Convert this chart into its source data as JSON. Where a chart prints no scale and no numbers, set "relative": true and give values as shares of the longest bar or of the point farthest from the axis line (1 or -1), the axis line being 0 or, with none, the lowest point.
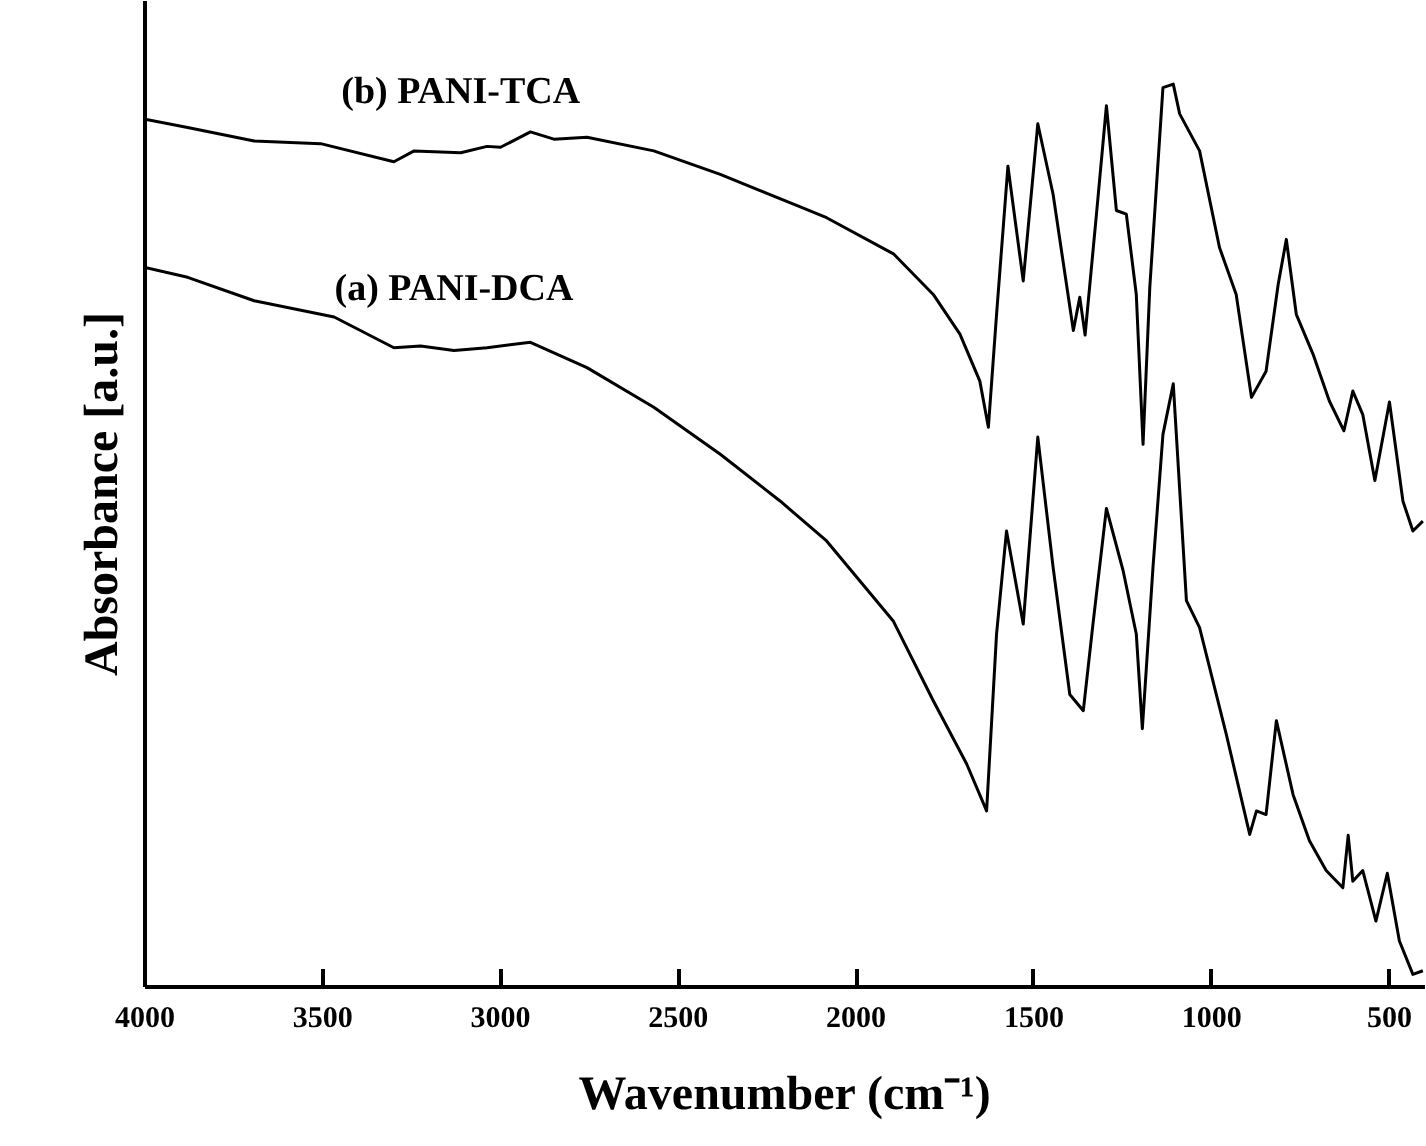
{
  "chart_data": {
    "type": "line",
    "relative": true,
    "xlabel": "Wavenumber (cm⁻¹)",
    "ylabel": "Absorbance [a.u.]",
    "xlim": [
      4000,
      400
    ],
    "xticks": [
      4000,
      3500,
      3000,
      2500,
      2000,
      1500,
      1000,
      500
    ],
    "grid": false,
    "series": [
      {
        "name": "(b) PANI-TCA",
        "color": "#000000",
        "x": [
          4000,
          3880,
          3693,
          3506,
          3300,
          3243,
          3112,
          3038,
          3000,
          2916,
          2850,
          2757,
          2569,
          2382,
          2270,
          2157,
          2083,
          1895,
          1783,
          1708,
          1652,
          1628,
          1605,
          1573,
          1530,
          1489,
          1446,
          1389,
          1371,
          1356,
          1324,
          1296,
          1268,
          1240,
          1212,
          1193,
          1174,
          1137,
          1108,
          1090,
          1034,
          978,
          931,
          888,
          847,
          813,
          790,
          762,
          715,
          669,
          628,
          603,
          575,
          541,
          500,
          462,
          434,
          406
        ],
        "values": [
          0.961,
          0.952,
          0.937,
          0.934,
          0.914,
          0.926,
          0.924,
          0.931,
          0.93,
          0.947,
          0.939,
          0.941,
          0.926,
          0.9,
          0.882,
          0.864,
          0.852,
          0.812,
          0.767,
          0.723,
          0.671,
          0.62,
          0.745,
          0.909,
          0.782,
          0.956,
          0.878,
          0.727,
          0.764,
          0.722,
          0.856,
          0.976,
          0.86,
          0.856,
          0.767,
          0.601,
          0.775,
          0.996,
          1.0,
          0.967,
          0.926,
          0.819,
          0.767,
          0.653,
          0.682,
          0.778,
          0.828,
          0.745,
          0.701,
          0.649,
          0.616,
          0.66,
          0.634,
          0.561,
          0.648,
          0.538,
          0.505,
          0.516
        ]
      },
      {
        "name": "(a) PANI-DCA",
        "color": "#000000",
        "x": [
          4000,
          3880,
          3693,
          3468,
          3300,
          3225,
          3131,
          3038,
          2916,
          2757,
          2569,
          2382,
          2213,
          2083,
          1895,
          1783,
          1689,
          1633,
          1605,
          1577,
          1530,
          1489,
          1446,
          1399,
          1361,
          1333,
          1296,
          1249,
          1212,
          1195,
          1165,
          1137,
          1108,
          1071,
          1034,
          959,
          893,
          874,
          847,
          818,
          771,
          725,
          678,
          631,
          616,
          603,
          575,
          538,
          506,
          472,
          434,
          406
        ],
        "values": [
          0.797,
          0.786,
          0.76,
          0.742,
          0.708,
          0.71,
          0.705,
          0.708,
          0.714,
          0.686,
          0.642,
          0.59,
          0.538,
          0.494,
          0.405,
          0.317,
          0.247,
          0.195,
          0.391,
          0.505,
          0.402,
          0.609,
          0.465,
          0.324,
          0.306,
          0.405,
          0.53,
          0.461,
          0.391,
          0.286,
          0.465,
          0.612,
          0.668,
          0.428,
          0.398,
          0.28,
          0.169,
          0.195,
          0.191,
          0.295,
          0.213,
          0.162,
          0.129,
          0.11,
          0.168,
          0.117,
          0.129,
          0.073,
          0.126,
          0.051,
          0.014,
          0.018
        ]
      }
    ]
  }
}
